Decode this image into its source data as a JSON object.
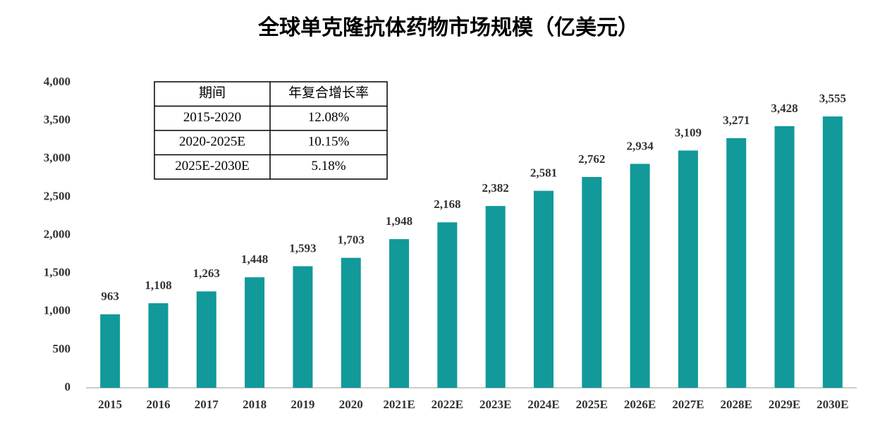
{
  "chart_data": {
    "type": "bar",
    "title": "全球单克隆抗体药物市场规模（亿美元）",
    "categories": [
      "2015",
      "2016",
      "2017",
      "2018",
      "2019",
      "2020",
      "2021E",
      "2022E",
      "2023E",
      "2024E",
      "2025E",
      "2026E",
      "2027E",
      "2028E",
      "2029E",
      "2030E"
    ],
    "values": [
      963,
      1108,
      1263,
      1448,
      1593,
      1703,
      1948,
      2168,
      2382,
      2581,
      2762,
      2934,
      3109,
      3271,
      3428,
      3555
    ],
    "value_labels": [
      "963",
      "1,108",
      "1,263",
      "1,448",
      "1,593",
      "1,703",
      "1,948",
      "2,168",
      "2,382",
      "2,581",
      "2,762",
      "2,934",
      "3,109",
      "3,271",
      "3,428",
      "3,555"
    ],
    "color": "#12999a",
    "ylim": [
      0,
      4000
    ],
    "yticks": [
      0,
      500,
      {
        "value": 1000,
        "label": "1,000"
      },
      {
        "value": 1500,
        "label": "1,500"
      },
      {
        "value": 2000,
        "label": "2,000"
      },
      {
        "value": 2500,
        "label": "2,500"
      },
      {
        "value": 3000,
        "label": "3,000"
      },
      {
        "value": 3500,
        "label": "3,500"
      },
      {
        "value": 4000,
        "label": "4,000"
      }
    ],
    "grid": false
  },
  "table": {
    "header": [
      "期间",
      "年复合增长率"
    ],
    "rows": [
      [
        "2015-2020",
        "12.08%"
      ],
      [
        "2020-2025E",
        "10.15%"
      ],
      [
        "2025E-2030E",
        "5.18%"
      ]
    ]
  }
}
